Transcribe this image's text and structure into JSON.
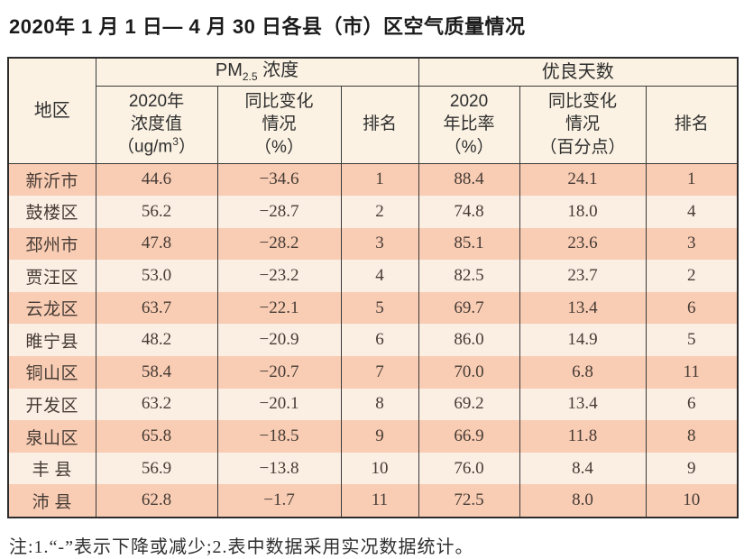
{
  "page": {
    "title": "2020年 1 月 1 日— 4 月 30 日各县（市）区空气质量情况",
    "note": "注:1.“-”表示下降或减少;2.表中数据采用实况数据统计。"
  },
  "colors": {
    "row_odd_bg": "#f9ccb4",
    "row_even_bg": "#fbeee3",
    "header_bg": "#fbf2e3",
    "border": "#3a3a3a",
    "text_body": "#463c35",
    "text_title": "#1b1b1b"
  },
  "table": {
    "header": {
      "region_label": "地区",
      "pm_group": {
        "prefix": "PM",
        "sub": "2.5",
        "suffix": " 浓度"
      },
      "good_group_label": "优良天数",
      "pm_value_col": {
        "lines": "2020年\n浓度值",
        "unit_pre": "（ug/m",
        "unit_sup": "3",
        "unit_post": "）"
      },
      "pm_change_col": "同比变化\n情况\n（%）",
      "pm_rank_col": "排名",
      "good_ratio_col": "2020\n年比率\n（%）",
      "good_change_col": "同比变化\n情况\n（百分点）",
      "good_rank_col": "排名"
    },
    "rows": [
      {
        "region": "新沂市",
        "pm_value": "44.6",
        "pm_change": "−34.6",
        "pm_rank": "1",
        "good_ratio": "88.4",
        "good_change": "24.1",
        "good_rank": "1"
      },
      {
        "region": "鼓楼区",
        "pm_value": "56.2",
        "pm_change": "−28.7",
        "pm_rank": "2",
        "good_ratio": "74.8",
        "good_change": "18.0",
        "good_rank": "4"
      },
      {
        "region": "邳州市",
        "pm_value": "47.8",
        "pm_change": "−28.2",
        "pm_rank": "3",
        "good_ratio": "85.1",
        "good_change": "23.6",
        "good_rank": "3"
      },
      {
        "region": "贾汪区",
        "pm_value": "53.0",
        "pm_change": "−23.2",
        "pm_rank": "4",
        "good_ratio": "82.5",
        "good_change": "23.7",
        "good_rank": "2"
      },
      {
        "region": "云龙区",
        "pm_value": "63.7",
        "pm_change": "−22.1",
        "pm_rank": "5",
        "good_ratio": "69.7",
        "good_change": "13.4",
        "good_rank": "6"
      },
      {
        "region": "睢宁县",
        "pm_value": "48.2",
        "pm_change": "−20.9",
        "pm_rank": "6",
        "good_ratio": "86.0",
        "good_change": "14.9",
        "good_rank": "5"
      },
      {
        "region": "铜山区",
        "pm_value": "58.4",
        "pm_change": "−20.7",
        "pm_rank": "7",
        "good_ratio": "70.0",
        "good_change": "6.8",
        "good_rank": "11"
      },
      {
        "region": "开发区",
        "pm_value": "63.2",
        "pm_change": "−20.1",
        "pm_rank": "8",
        "good_ratio": "69.2",
        "good_change": "13.4",
        "good_rank": "6"
      },
      {
        "region": "泉山区",
        "pm_value": "65.8",
        "pm_change": "−18.5",
        "pm_rank": "9",
        "good_ratio": "66.9",
        "good_change": "11.8",
        "good_rank": "8"
      },
      {
        "region": "丰 县",
        "pm_value": "56.9",
        "pm_change": "−13.8",
        "pm_rank": "10",
        "good_ratio": "76.0",
        "good_change": "8.4",
        "good_rank": "9"
      },
      {
        "region": "沛 县",
        "pm_value": "62.8",
        "pm_change": "−1.7",
        "pm_rank": "11",
        "good_ratio": "72.5",
        "good_change": "8.0",
        "good_rank": "10"
      }
    ]
  }
}
